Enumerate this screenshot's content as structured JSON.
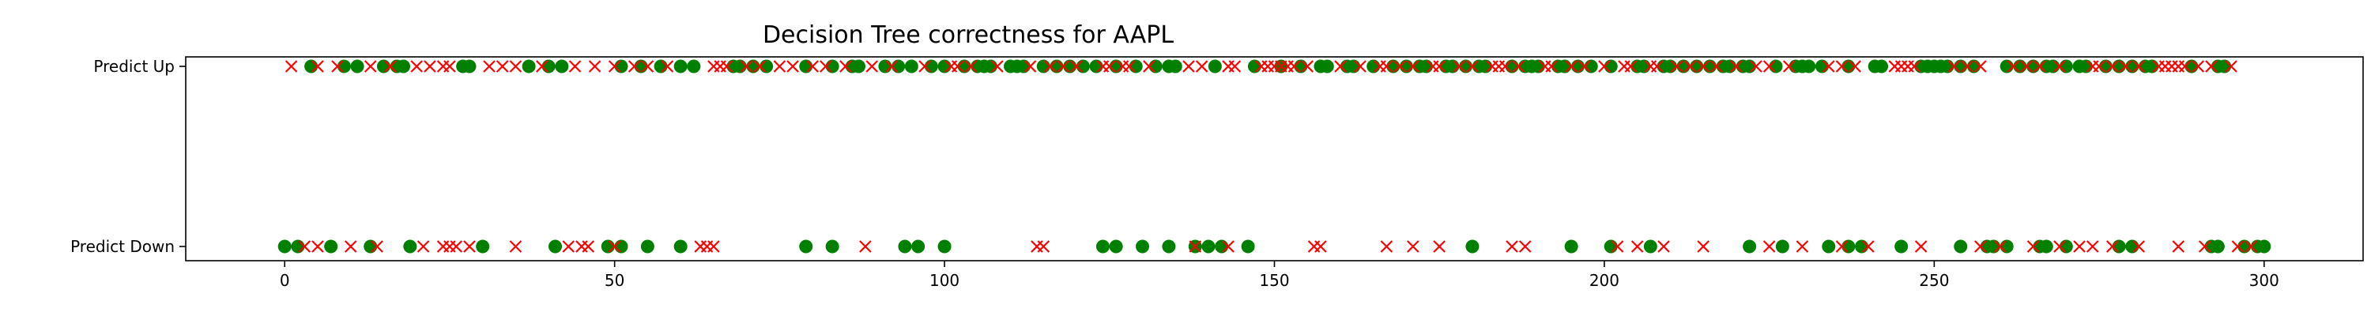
{
  "chart_data": {
    "type": "scatter",
    "title": "Decision Tree correctness for AAPL",
    "xlabel": "",
    "ylabel": "",
    "xlim": [
      -15,
      315
    ],
    "xticks": [
      0,
      50,
      100,
      150,
      200,
      250,
      300
    ],
    "ycategories": [
      "Predict Down",
      "Predict Up"
    ],
    "grid": false,
    "legend": "none",
    "colors": {
      "correct": "#008000",
      "incorrect": "#ff0000"
    },
    "series": [
      {
        "marker": "circle",
        "color": "#008000",
        "points": {
          "Predict Up": [
            4,
            9,
            11,
            15,
            17,
            18,
            27,
            28,
            37,
            40,
            42,
            51,
            54,
            57,
            60,
            62,
            68,
            69,
            71,
            73,
            79,
            83,
            86,
            87,
            91,
            93,
            95,
            98,
            100,
            103,
            105,
            106,
            107,
            110,
            111,
            112,
            115,
            117,
            119,
            121,
            123,
            126,
            129,
            132,
            134,
            135,
            141,
            147,
            151,
            154,
            157,
            158,
            161,
            162,
            165,
            168,
            170,
            172,
            173,
            176,
            177,
            179,
            181,
            182,
            186,
            188,
            189,
            190,
            193,
            194,
            196,
            198,
            201,
            205,
            206,
            209,
            210,
            212,
            214,
            216,
            218,
            219,
            221,
            222,
            226,
            229,
            230,
            231,
            233,
            237,
            241,
            242,
            248,
            249,
            250,
            251,
            252,
            254,
            256,
            261,
            263,
            265,
            267,
            268,
            270,
            272,
            273,
            276,
            278,
            280,
            282,
            283,
            289,
            293,
            294
          ],
          "Predict Down": [
            0,
            2,
            7,
            13,
            19,
            30,
            41,
            49,
            51,
            55,
            60,
            79,
            83,
            94,
            96,
            100,
            124,
            126,
            130,
            134,
            138,
            140,
            142,
            146,
            180,
            195,
            201,
            207,
            222,
            227,
            234,
            237,
            239,
            245,
            254,
            258,
            259,
            261,
            266,
            267,
            270,
            278,
            280,
            292,
            293,
            297,
            299,
            300
          ]
        }
      },
      {
        "marker": "x",
        "color": "#ff0000",
        "points": {
          "Predict Up": [
            1,
            5,
            8,
            13,
            16,
            20,
            22,
            24,
            25,
            31,
            33,
            35,
            39,
            44,
            47,
            50,
            53,
            55,
            58,
            65,
            66,
            67,
            70,
            72,
            75,
            77,
            80,
            82,
            85,
            89,
            92,
            97,
            101,
            102,
            104,
            108,
            113,
            116,
            118,
            120,
            124,
            125,
            127,
            128,
            131,
            137,
            139,
            143,
            144,
            148,
            149,
            150,
            151,
            152,
            153,
            155,
            160,
            163,
            166,
            167,
            169,
            171,
            174,
            175,
            178,
            180,
            183,
            184,
            185,
            187,
            191,
            192,
            195,
            197,
            200,
            203,
            204,
            207,
            208,
            211,
            213,
            215,
            217,
            220,
            223,
            225,
            228,
            234,
            236,
            238,
            244,
            245,
            246,
            247,
            253,
            255,
            257,
            262,
            264,
            266,
            269,
            274,
            275,
            277,
            279,
            281,
            284,
            285,
            286,
            287,
            288,
            290,
            292,
            295
          ],
          "Predict Down": [
            3,
            5,
            10,
            14,
            21,
            24,
            25,
            26,
            28,
            35,
            43,
            45,
            46,
            50,
            65,
            64,
            63,
            88,
            114,
            115,
            138,
            143,
            156,
            157,
            167,
            171,
            175,
            186,
            188,
            202,
            205,
            209,
            215,
            225,
            230,
            236,
            240,
            248,
            257,
            260,
            265,
            269,
            272,
            274,
            277,
            281,
            287,
            291,
            296,
            298
          ]
        }
      }
    ]
  }
}
